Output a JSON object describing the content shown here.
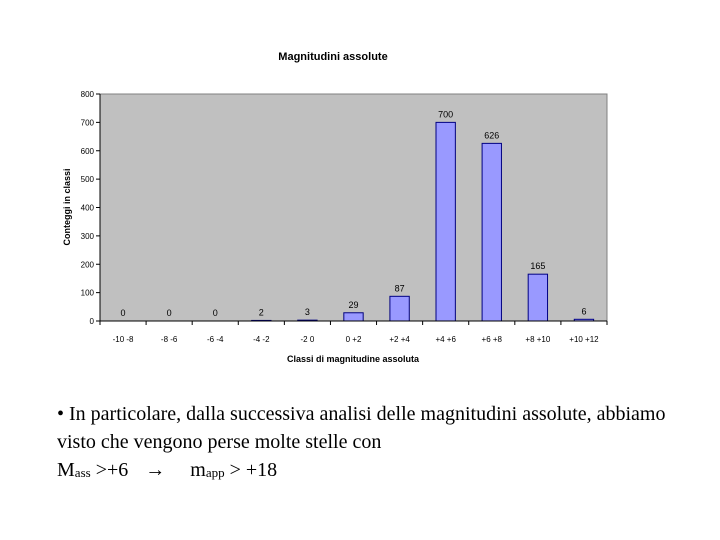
{
  "chart_data": {
    "type": "bar",
    "title": "Magnitudini assolute",
    "xlabel": "Classi di magnitudine assoluta",
    "ylabel": "Conteggi in classi",
    "categories": [
      "-10 -8",
      "-8 -6",
      "-6 -4",
      "-4 -2",
      "-2 0",
      "0 +2",
      "+2 +4",
      "+4 +6",
      "+6 +8",
      "+8 +10",
      "+10 +12"
    ],
    "values": [
      0,
      0,
      0,
      2,
      3,
      29,
      87,
      700,
      626,
      165,
      6
    ],
    "ylim": [
      0,
      800
    ],
    "yticks": [
      0,
      100,
      200,
      300,
      400,
      500,
      600,
      700,
      800
    ],
    "grid": false,
    "legend": "none",
    "colors": {
      "plot_bg": "#c0c0c0",
      "bar_fill": "#9999ff",
      "bar_stroke": "#000080"
    }
  },
  "caption": {
    "bullet": "•",
    "text_line": "In particolare, dalla successiva analisi delle magnitudini assolute, abbiamo visto che vengono perse molte stelle con",
    "m_ass": "M",
    "m_ass_sub": "ass",
    "cond1": " >+6",
    "arrow": "→",
    "m_app": "m",
    "m_app_sub": "app",
    "cond2": " > +18"
  }
}
